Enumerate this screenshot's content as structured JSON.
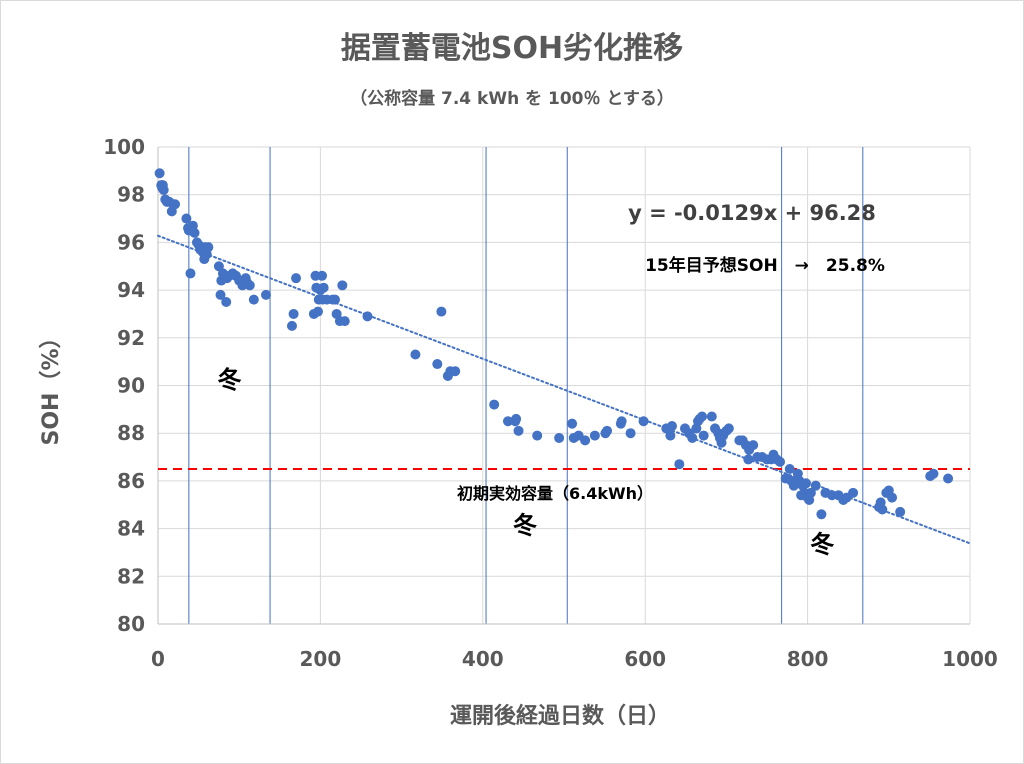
{
  "chart_data": {
    "type": "scatter",
    "title": "据置蓄電池SOH劣化推移",
    "subtitle": "（公称容量 7.4 kWh を 100％ とする）",
    "xlabel": "運開後経過日数（日）",
    "ylabel": "SOH（%）",
    "xlim": [
      0,
      1000
    ],
    "ylim": [
      80,
      100
    ],
    "x_ticks": [
      "0",
      "200",
      "400",
      "600",
      "800",
      "1000"
    ],
    "y_ticks": [
      "80",
      "82",
      "84",
      "86",
      "88",
      "90",
      "92",
      "94",
      "96",
      "98",
      "100"
    ],
    "grid": true,
    "marker_color": "#4472C4",
    "trendline": {
      "slope": -0.0129,
      "intercept": 96.28,
      "equation_label": "y = -0.0129x + 96.28",
      "style": "dotted",
      "color": "#4472C4"
    },
    "prediction_label": "15年目予想SOH　→　25.8%",
    "reference_line": {
      "y": 86.5,
      "label": "初期実効容量（6.4kWh）",
      "color": "#FF0000",
      "style": "dashed"
    },
    "vertical_lines": [
      38,
      138,
      404,
      504,
      768,
      868
    ],
    "winter_label": "冬",
    "winter_labels": [
      {
        "x": 88,
        "y": 89.9
      },
      {
        "x": 452,
        "y": 83.8
      },
      {
        "x": 818,
        "y": 83.0
      }
    ],
    "points": [
      [
        2,
        98.9
      ],
      [
        4,
        98.4
      ],
      [
        5,
        98.3
      ],
      [
        6,
        98.4
      ],
      [
        7,
        98.2
      ],
      [
        9,
        97.8
      ],
      [
        11,
        97.7
      ],
      [
        14,
        97.7
      ],
      [
        17,
        97.3
      ],
      [
        19,
        97.6
      ],
      [
        21,
        97.6
      ],
      [
        35,
        97.0
      ],
      [
        37,
        96.6
      ],
      [
        38,
        96.5
      ],
      [
        40,
        94.7
      ],
      [
        42,
        96.5
      ],
      [
        43,
        96.7
      ],
      [
        45,
        96.4
      ],
      [
        48,
        96.0
      ],
      [
        50,
        95.9
      ],
      [
        52,
        95.7
      ],
      [
        55,
        95.6
      ],
      [
        57,
        95.3
      ],
      [
        58,
        95.8
      ],
      [
        60,
        95.5
      ],
      [
        62,
        95.8
      ],
      [
        75,
        95.0
      ],
      [
        77,
        93.8
      ],
      [
        78,
        94.4
      ],
      [
        80,
        94.7
      ],
      [
        84,
        93.5
      ],
      [
        85,
        94.5
      ],
      [
        88,
        94.6
      ],
      [
        92,
        94.7
      ],
      [
        96,
        94.6
      ],
      [
        100,
        94.4
      ],
      [
        104,
        94.2
      ],
      [
        108,
        94.5
      ],
      [
        110,
        94.3
      ],
      [
        113,
        94.2
      ],
      [
        118,
        93.6
      ],
      [
        133,
        93.8
      ],
      [
        165,
        92.5
      ],
      [
        167,
        93.0
      ],
      [
        170,
        94.5
      ],
      [
        192,
        93.0
      ],
      [
        194,
        94.6
      ],
      [
        195,
        94.1
      ],
      [
        197,
        93.1
      ],
      [
        198,
        93.6
      ],
      [
        200,
        94.0
      ],
      [
        202,
        94.6
      ],
      [
        203,
        93.6
      ],
      [
        204,
        94.1
      ],
      [
        208,
        93.6
      ],
      [
        215,
        93.6
      ],
      [
        218,
        93.6
      ],
      [
        220,
        93.0
      ],
      [
        224,
        92.7
      ],
      [
        227,
        94.2
      ],
      [
        230,
        92.7
      ],
      [
        258,
        92.9
      ],
      [
        317,
        91.3
      ],
      [
        344,
        90.9
      ],
      [
        349,
        93.1
      ],
      [
        357,
        90.4
      ],
      [
        360,
        90.6
      ],
      [
        366,
        90.6
      ],
      [
        414,
        89.2
      ],
      [
        431,
        88.5
      ],
      [
        440,
        88.5
      ],
      [
        441,
        88.6
      ],
      [
        444,
        88.1
      ],
      [
        467,
        87.9
      ],
      [
        494,
        87.8
      ],
      [
        510,
        88.4
      ],
      [
        512,
        87.8
      ],
      [
        518,
        87.9
      ],
      [
        526,
        87.7
      ],
      [
        538,
        87.9
      ],
      [
        551,
        88.0
      ],
      [
        553,
        88.1
      ],
      [
        570,
        88.4
      ],
      [
        571,
        88.5
      ],
      [
        582,
        88.0
      ],
      [
        598,
        88.5
      ],
      [
        626,
        88.2
      ],
      [
        631,
        87.9
      ],
      [
        633,
        88.3
      ],
      [
        642,
        86.7
      ],
      [
        649,
        88.2
      ],
      [
        654,
        88.0
      ],
      [
        658,
        87.8
      ],
      [
        663,
        88.2
      ],
      [
        665,
        88.5
      ],
      [
        667,
        88.6
      ],
      [
        670,
        88.7
      ],
      [
        672,
        87.9
      ],
      [
        682,
        88.7
      ],
      [
        686,
        88.2
      ],
      [
        690,
        88.0
      ],
      [
        692,
        87.8
      ],
      [
        694,
        87.6
      ],
      [
        696,
        87.9
      ],
      [
        700,
        88.1
      ],
      [
        703,
        88.2
      ],
      [
        716,
        87.7
      ],
      [
        720,
        87.7
      ],
      [
        724,
        87.5
      ],
      [
        727,
        86.9
      ],
      [
        728,
        87.3
      ],
      [
        733,
        87.5
      ],
      [
        738,
        87.0
      ],
      [
        744,
        87.0
      ],
      [
        750,
        86.9
      ],
      [
        755,
        86.9
      ],
      [
        758,
        87.1
      ],
      [
        762,
        86.9
      ],
      [
        766,
        86.8
      ],
      [
        773,
        86.1
      ],
      [
        778,
        86.5
      ],
      [
        780,
        86.0
      ],
      [
        783,
        85.8
      ],
      [
        788,
        86.3
      ],
      [
        790,
        86.0
      ],
      [
        792,
        85.4
      ],
      [
        794,
        85.8
      ],
      [
        796,
        85.5
      ],
      [
        798,
        85.9
      ],
      [
        800,
        85.3
      ],
      [
        802,
        85.2
      ],
      [
        804,
        85.5
      ],
      [
        810,
        85.8
      ],
      [
        817,
        84.6
      ],
      [
        822,
        85.5
      ],
      [
        830,
        85.4
      ],
      [
        838,
        85.4
      ],
      [
        844,
        85.2
      ],
      [
        848,
        85.3
      ],
      [
        856,
        85.5
      ],
      [
        888,
        84.9
      ],
      [
        890,
        85.1
      ],
      [
        892,
        84.8
      ],
      [
        897,
        85.5
      ],
      [
        900,
        85.6
      ],
      [
        904,
        85.3
      ],
      [
        914,
        84.7
      ],
      [
        951,
        86.2
      ],
      [
        955,
        86.3
      ],
      [
        973,
        86.1
      ]
    ]
  }
}
